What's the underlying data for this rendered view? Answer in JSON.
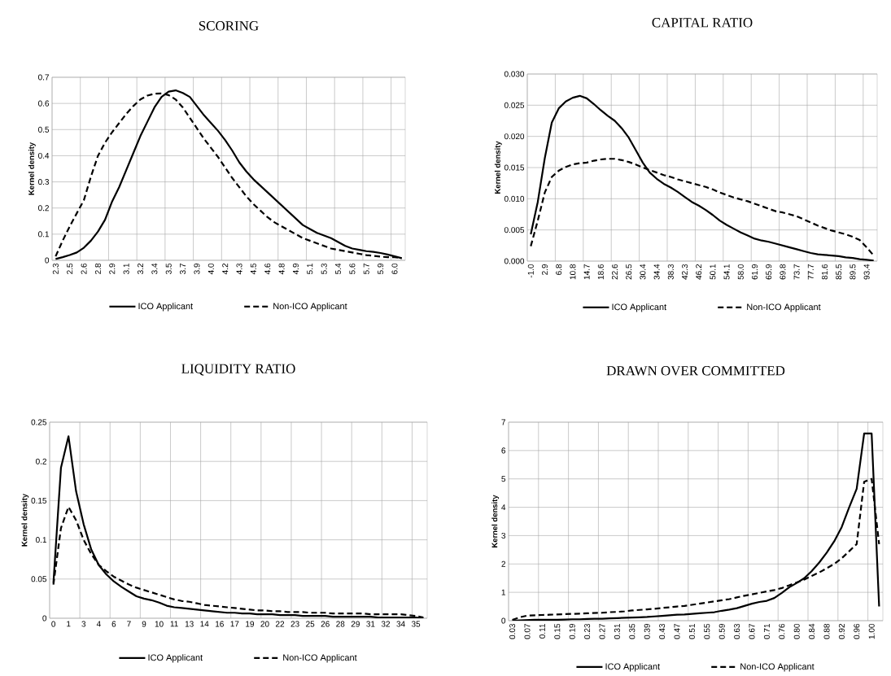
{
  "chart_data": [
    {
      "type": "line",
      "title": "SCORING",
      "ylabel": "Kernel density",
      "grid": true,
      "legend": "bottom",
      "marker": "none",
      "categories": [
        "2.3",
        null,
        "2.5",
        null,
        "2.6",
        null,
        "2.8",
        null,
        "2.9",
        null,
        "3.1",
        null,
        "3.2",
        null,
        "3.4",
        null,
        "3.5",
        null,
        "3.7",
        null,
        "3.9",
        null,
        "4.0",
        null,
        "4.2",
        null,
        "4.3",
        null,
        "4.5",
        null,
        "4.6",
        null,
        "4.8",
        null,
        "4.9",
        null,
        "5.1",
        null,
        "5.3",
        null,
        "5.4",
        null,
        "5.6",
        null,
        "5.7",
        null,
        "5.9",
        null,
        "6.0",
        null
      ],
      "ylim": [
        0,
        0.7
      ],
      "yticks": [
        0,
        0.1,
        0.2,
        0.3,
        0.4,
        0.5,
        0.6,
        0.7
      ],
      "series": [
        {
          "name": "ICO Applicant",
          "color": "#000000",
          "line_style": "solid",
          "values": [
            0.005,
            0.012,
            0.02,
            0.03,
            0.048,
            0.075,
            0.11,
            0.155,
            0.225,
            0.28,
            0.345,
            0.41,
            0.475,
            0.53,
            0.585,
            0.625,
            0.645,
            0.65,
            0.64,
            0.625,
            0.59,
            0.555,
            0.525,
            0.495,
            0.46,
            0.42,
            0.375,
            0.34,
            0.31,
            0.285,
            0.26,
            0.235,
            0.21,
            0.185,
            0.16,
            0.135,
            0.12,
            0.105,
            0.095,
            0.085,
            0.07,
            0.055,
            0.045,
            0.04,
            0.035,
            0.032,
            0.028,
            0.022,
            0.015,
            0.008
          ]
        },
        {
          "name": "Non-ICO Applicant",
          "color": "#000000",
          "line_style": "dashed",
          "values": [
            0.015,
            0.075,
            0.13,
            0.18,
            0.23,
            0.32,
            0.4,
            0.45,
            0.49,
            0.525,
            0.56,
            0.59,
            0.615,
            0.63,
            0.637,
            0.638,
            0.632,
            0.615,
            0.585,
            0.545,
            0.505,
            0.465,
            0.43,
            0.395,
            0.355,
            0.315,
            0.28,
            0.245,
            0.215,
            0.19,
            0.165,
            0.145,
            0.13,
            0.115,
            0.1,
            0.085,
            0.075,
            0.065,
            0.055,
            0.045,
            0.04,
            0.035,
            0.03,
            0.025,
            0.02,
            0.017,
            0.014,
            0.012,
            0.012,
            0.008
          ]
        }
      ]
    },
    {
      "type": "line",
      "title": "CAPITAL RATIO",
      "ylabel": "Kernel density",
      "grid": true,
      "legend": "bottom",
      "marker": "none",
      "categories": [
        "-1.0",
        null,
        "2.9",
        null,
        "6.8",
        null,
        "10.8",
        null,
        "14.7",
        null,
        "18.6",
        null,
        "22.6",
        null,
        "26.5",
        null,
        "30.4",
        null,
        "34.4",
        null,
        "38.3",
        null,
        "42.3",
        null,
        "46.2",
        null,
        "50.1",
        null,
        "54.1",
        null,
        "58.0",
        null,
        "61.9",
        null,
        "65.9",
        null,
        "69.8",
        null,
        "73.7",
        null,
        "77.7",
        null,
        "81.6",
        null,
        "85.5",
        null,
        "89.5",
        null,
        "93.4",
        null
      ],
      "ylim": [
        0,
        0.03
      ],
      "yticks": [
        {
          "value": 0,
          "label": "0.000"
        },
        {
          "value": 0.005,
          "label": "0.005"
        },
        {
          "value": 0.01,
          "label": "0.010"
        },
        {
          "value": 0.015,
          "label": "0.015"
        },
        {
          "value": 0.02,
          "label": "0.020"
        },
        {
          "value": 0.025,
          "label": "0.025"
        },
        {
          "value": 0.03,
          "label": "0.030"
        }
      ],
      "series": [
        {
          "name": "ICO Applicant",
          "color": "#000000",
          "line_style": "solid",
          "values": [
            0.0043,
            0.0095,
            0.0165,
            0.0222,
            0.0245,
            0.0256,
            0.0262,
            0.0265,
            0.0261,
            0.0252,
            0.0242,
            0.0233,
            0.0225,
            0.0213,
            0.0198,
            0.0178,
            0.0158,
            0.0142,
            0.0132,
            0.0124,
            0.0118,
            0.0111,
            0.0103,
            0.0095,
            0.0089,
            0.0082,
            0.0074,
            0.0065,
            0.0058,
            0.0052,
            0.0046,
            0.0041,
            0.0036,
            0.0033,
            0.0031,
            0.0028,
            0.0025,
            0.0022,
            0.0019,
            0.0016,
            0.0013,
            0.0011,
            0.001,
            0.0009,
            0.0008,
            0.0006,
            0.0005,
            0.0003,
            0.0002,
            0.0001
          ]
        },
        {
          "name": "Non-ICO Applicant",
          "color": "#000000",
          "line_style": "dashed",
          "values": [
            0.0024,
            0.0065,
            0.011,
            0.0135,
            0.0145,
            0.0151,
            0.0155,
            0.0157,
            0.0158,
            0.0161,
            0.0163,
            0.0164,
            0.0164,
            0.0162,
            0.0159,
            0.0155,
            0.015,
            0.0146,
            0.0142,
            0.0138,
            0.0135,
            0.0131,
            0.0128,
            0.0125,
            0.0122,
            0.0119,
            0.0115,
            0.011,
            0.0106,
            0.0102,
            0.0099,
            0.0096,
            0.0092,
            0.0088,
            0.0084,
            0.008,
            0.0078,
            0.0075,
            0.0072,
            0.0067,
            0.0062,
            0.0057,
            0.0053,
            0.0049,
            0.0046,
            0.0043,
            0.0039,
            0.0034,
            0.0022,
            0.0009
          ]
        }
      ]
    },
    {
      "type": "line",
      "title": "LIQUIDITY RATIO",
      "ylabel": "Kernel density",
      "grid": true,
      "legend": "bottom",
      "marker": "none",
      "categories": [
        "0",
        null,
        "1",
        null,
        "3",
        null,
        "4",
        null,
        "6",
        null,
        "7",
        null,
        "9",
        null,
        "10",
        null,
        "11",
        null,
        "13",
        null,
        "14",
        null,
        "16",
        null,
        "17",
        null,
        "19",
        null,
        "20",
        null,
        "22",
        null,
        "23",
        null,
        "25",
        null,
        "26",
        null,
        "28",
        null,
        "29",
        null,
        "31",
        null,
        "32",
        null,
        "34",
        null,
        "35",
        null
      ],
      "ylim": [
        0,
        0.25
      ],
      "yticks": [
        0,
        0.05,
        0.1,
        0.15,
        0.2,
        0.25
      ],
      "series": [
        {
          "name": "ICO Applicant",
          "color": "#000000",
          "line_style": "solid",
          "values": [
            0.045,
            0.192,
            0.232,
            0.162,
            0.12,
            0.088,
            0.068,
            0.056,
            0.047,
            0.04,
            0.034,
            0.028,
            0.025,
            0.023,
            0.02,
            0.016,
            0.014,
            0.013,
            0.012,
            0.011,
            0.01,
            0.009,
            0.008,
            0.007,
            0.007,
            0.006,
            0.006,
            0.005,
            0.005,
            0.005,
            0.004,
            0.004,
            0.004,
            0.003,
            0.003,
            0.003,
            0.003,
            0.002,
            0.002,
            0.002,
            0.002,
            0.002,
            0.002,
            0.001,
            0.001,
            0.001,
            0.001,
            0.001,
            0.001,
            0.0
          ]
        },
        {
          "name": "Non-ICO Applicant",
          "color": "#000000",
          "line_style": "dashed",
          "values": [
            0.043,
            0.115,
            0.142,
            0.125,
            0.1,
            0.082,
            0.068,
            0.06,
            0.053,
            0.048,
            0.043,
            0.039,
            0.036,
            0.033,
            0.03,
            0.027,
            0.024,
            0.022,
            0.021,
            0.019,
            0.017,
            0.016,
            0.015,
            0.014,
            0.013,
            0.012,
            0.011,
            0.01,
            0.01,
            0.009,
            0.009,
            0.008,
            0.008,
            0.008,
            0.007,
            0.007,
            0.007,
            0.006,
            0.006,
            0.006,
            0.006,
            0.006,
            0.005,
            0.005,
            0.005,
            0.005,
            0.005,
            0.004,
            0.003,
            0.001
          ]
        }
      ]
    },
    {
      "type": "line",
      "title": "DRAWN OVER COMMITTED",
      "ylabel": "Kernel density",
      "grid": true,
      "legend": "bottom",
      "marker": "none",
      "categories": [
        "0.03",
        null,
        "0.07",
        null,
        "0.11",
        null,
        "0.15",
        null,
        "0.19",
        null,
        "0.23",
        null,
        "0.27",
        null,
        "0.31",
        null,
        "0.35",
        null,
        "0.39",
        null,
        "0.43",
        null,
        "0.47",
        null,
        "0.51",
        null,
        "0.55",
        null,
        "0.59",
        null,
        "0.63",
        null,
        "0.67",
        null,
        "0.71",
        null,
        "0.76",
        null,
        "0.80",
        null,
        "0.84",
        null,
        "0.88",
        null,
        "0.92",
        null,
        "0.96",
        null,
        "1.00",
        null
      ],
      "ylim": [
        0,
        7
      ],
      "yticks": [
        0,
        1,
        2,
        3,
        4,
        5,
        6,
        7
      ],
      "series": [
        {
          "name": "ICO Applicant",
          "color": "#000000",
          "line_style": "solid",
          "values": [
            0.0,
            0.01,
            0.02,
            0.03,
            0.03,
            0.03,
            0.03,
            0.04,
            0.05,
            0.05,
            0.06,
            0.07,
            0.07,
            0.08,
            0.09,
            0.1,
            0.11,
            0.12,
            0.13,
            0.15,
            0.17,
            0.19,
            0.21,
            0.22,
            0.24,
            0.26,
            0.28,
            0.3,
            0.35,
            0.39,
            0.44,
            0.52,
            0.6,
            0.66,
            0.7,
            0.8,
            0.98,
            1.18,
            1.33,
            1.5,
            1.75,
            2.05,
            2.4,
            2.8,
            3.3,
            4.0,
            4.65,
            6.6,
            6.6,
            0.5
          ]
        },
        {
          "name": "Non-ICO Applicant",
          "color": "#000000",
          "line_style": "dashed",
          "values": [
            0.03,
            0.12,
            0.18,
            0.19,
            0.2,
            0.21,
            0.22,
            0.23,
            0.24,
            0.25,
            0.26,
            0.27,
            0.28,
            0.3,
            0.31,
            0.33,
            0.36,
            0.38,
            0.4,
            0.42,
            0.45,
            0.47,
            0.5,
            0.52,
            0.56,
            0.6,
            0.64,
            0.68,
            0.72,
            0.76,
            0.82,
            0.88,
            0.93,
            0.98,
            1.03,
            1.08,
            1.15,
            1.25,
            1.35,
            1.45,
            1.58,
            1.7,
            1.85,
            2.0,
            2.2,
            2.45,
            2.7,
            4.9,
            5.0,
            2.7
          ]
        }
      ]
    }
  ]
}
